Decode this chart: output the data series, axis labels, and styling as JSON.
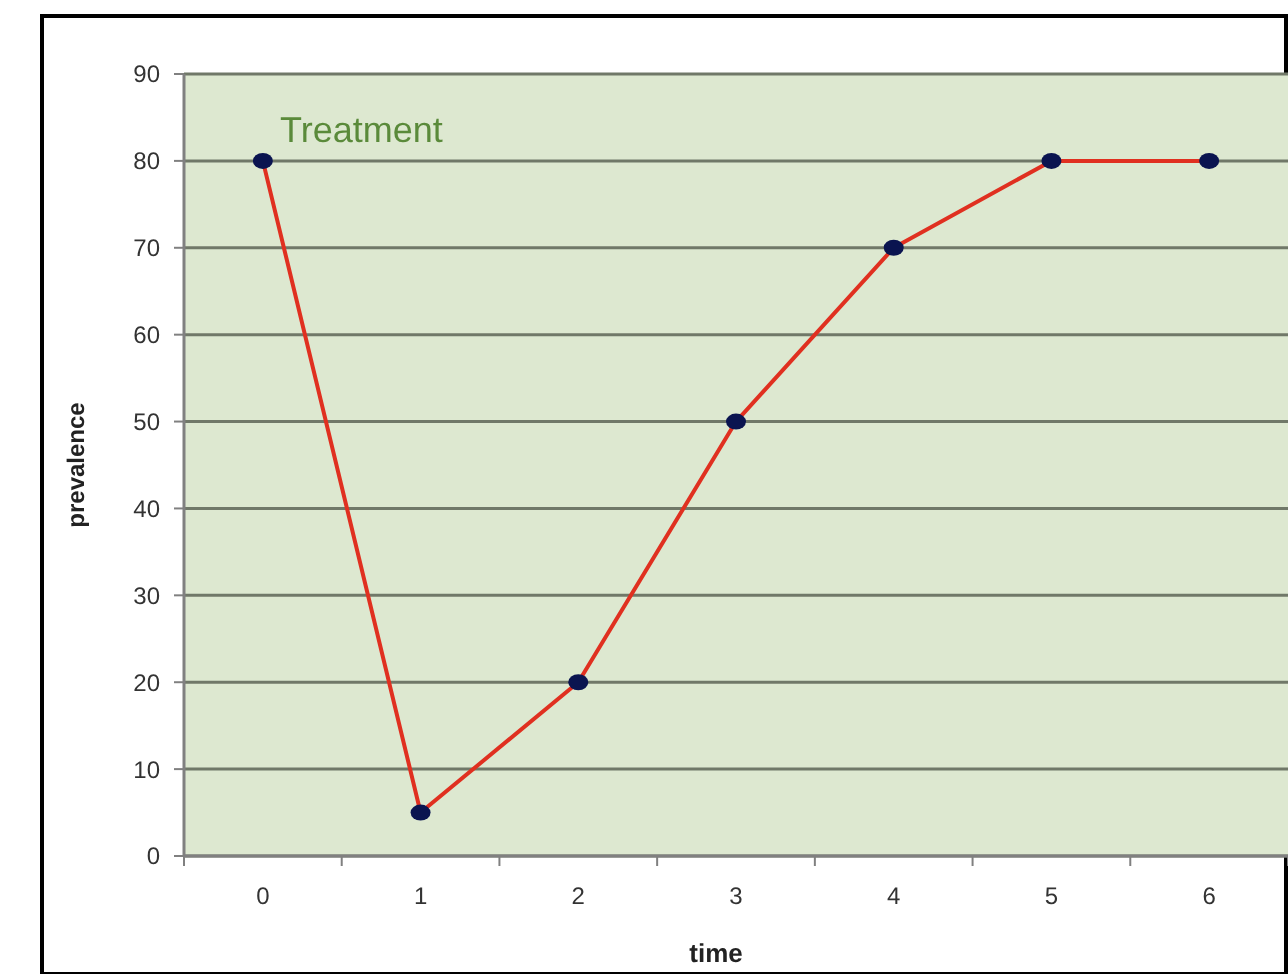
{
  "chart_data": {
    "type": "line",
    "categories": [
      "0",
      "1",
      "2",
      "3",
      "4",
      "5",
      "6"
    ],
    "series": [
      {
        "color": "#e03020",
        "values": [
          80,
          5,
          20,
          50,
          70,
          80,
          80
        ]
      }
    ],
    "xlabel": "time",
    "ylabel": "prevalence",
    "annotations": [
      "Treatment"
    ],
    "ylim": [
      0,
      90
    ],
    "yticks": [
      0,
      10,
      20,
      30,
      40,
      50,
      60,
      70,
      80,
      90
    ],
    "grid": "y",
    "marker": "circle",
    "line_style": "solid"
  }
}
